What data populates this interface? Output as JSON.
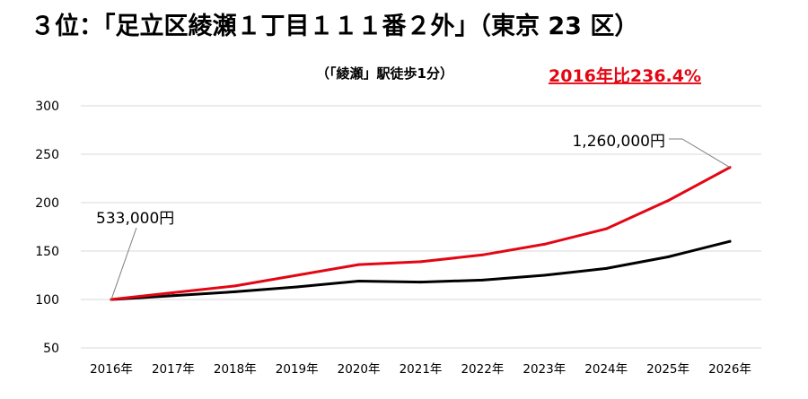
{
  "chart_data": {
    "type": "line",
    "title": "３位：「足立区綾瀬１丁目１１１番２外」（東京 23 区）",
    "subtitle": "（「綾瀬」駅徒歩1分）",
    "highlight": "2016年比236.4%",
    "categories": [
      "2016年",
      "2017年",
      "2018年",
      "2019年",
      "2020年",
      "2021年",
      "2022年",
      "2023年",
      "2024年",
      "2025年",
      "2026年"
    ],
    "series": [
      {
        "name": "",
        "color": "#e30613",
        "values": [
          100,
          107,
          114,
          125,
          136,
          139,
          146,
          157,
          173,
          202,
          236.4
        ]
      },
      {
        "name": "",
        "color": "#000000",
        "values": [
          100,
          104,
          108,
          113,
          119,
          118,
          120,
          125,
          132,
          144,
          160
        ]
      }
    ],
    "ylim": [
      50,
      300
    ],
    "yticks": [
      300,
      250,
      200,
      150,
      100,
      50
    ],
    "grid": true,
    "annotations": [
      {
        "text": "533,000円",
        "series": 0,
        "index": 0
      },
      {
        "text": "1,260,000円",
        "series": 0,
        "index": 10
      }
    ]
  }
}
